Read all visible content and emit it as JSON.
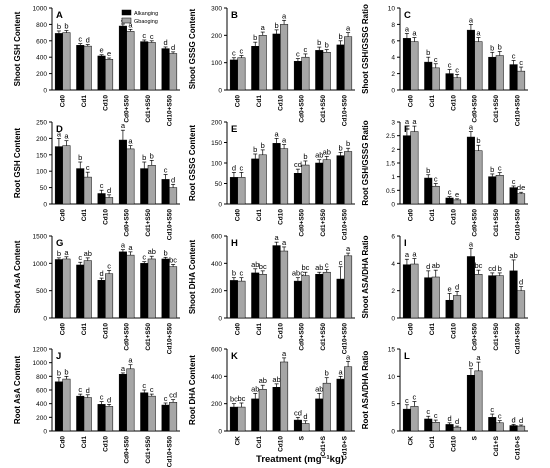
{
  "colors": {
    "alkanging": "#000000",
    "gbaoging": "#a6a6a6",
    "axis": "#000000"
  },
  "legend": {
    "entries": [
      "Alkanging",
      "Gbaoging"
    ]
  },
  "xlabel": "Treatment (mg⁻¹kg)",
  "chart_data": [
    {
      "id": "A",
      "type": "bar",
      "ylabel": "Shoot GSH Content",
      "ylim": [
        0,
        1000
      ],
      "yticks": [
        0,
        200,
        400,
        600,
        800,
        1000
      ],
      "categories": [
        "Cd0",
        "Cd1",
        "Cd10",
        "Cd0+S50",
        "Cd1+S50",
        "Cd10+S50"
      ],
      "series": [
        {
          "name": "Alkanging",
          "values": [
            690,
            545,
            415,
            780,
            590,
            505
          ],
          "errors": [
            30,
            20,
            15,
            25,
            20,
            20
          ],
          "letters": [
            "b",
            "c",
            "e",
            "a",
            "c",
            "d"
          ]
        },
        {
          "name": "Gbaoging",
          "values": [
            700,
            535,
            375,
            715,
            580,
            445
          ],
          "errors": [
            25,
            20,
            15,
            25,
            20,
            20
          ],
          "letters": [
            "b",
            "d",
            "e",
            "a",
            "c",
            "d"
          ]
        }
      ]
    },
    {
      "id": "B",
      "type": "bar",
      "ylabel": "Shoot GSSG Content",
      "ylim": [
        0,
        300
      ],
      "yticks": [
        0,
        100,
        200,
        300
      ],
      "categories": [
        "Cd0",
        "Cd1",
        "Cd10",
        "Cd0+S50",
        "Cd1+S50",
        "Cd10+S50"
      ],
      "series": [
        {
          "name": "Alkanging",
          "values": [
            110,
            160,
            205,
            105,
            145,
            165
          ],
          "errors": [
            8,
            15,
            15,
            10,
            12,
            15
          ],
          "letters": [
            "c",
            "b",
            "b",
            "c",
            "b",
            "b"
          ]
        },
        {
          "name": "Gbaoging",
          "values": [
            118,
            200,
            240,
            120,
            138,
            195
          ],
          "errors": [
            8,
            12,
            15,
            12,
            10,
            15
          ],
          "letters": [
            "c",
            "a",
            "a",
            "c",
            "b",
            "a"
          ]
        }
      ]
    },
    {
      "id": "C",
      "type": "bar",
      "ylabel": "Shoot GSH/GSSG Ratio",
      "ylim": [
        0,
        10
      ],
      "yticks": [
        0,
        2,
        4,
        6,
        8,
        10
      ],
      "categories": [
        "Cd0",
        "Cd1",
        "Cd10",
        "Cd0+S50",
        "Cd1+S50",
        "Cd10+S50"
      ],
      "series": [
        {
          "name": "Alkanging",
          "values": [
            6.3,
            3.4,
            2.0,
            7.3,
            4.0,
            3.1
          ],
          "errors": [
            0.6,
            0.6,
            0.5,
            0.7,
            0.6,
            0.5
          ],
          "letters": [
            "a",
            "b",
            "c",
            "a",
            "b",
            "c"
          ]
        },
        {
          "name": "Gbaoging",
          "values": [
            5.9,
            2.7,
            1.5,
            5.9,
            4.2,
            2.3
          ],
          "errors": [
            0.5,
            0.5,
            0.4,
            0.5,
            0.5,
            0.5
          ],
          "letters": [
            "a",
            "c",
            "c",
            "a",
            "b",
            "c"
          ]
        }
      ]
    },
    {
      "id": "D",
      "type": "bar",
      "ylabel": "Root GSH Content",
      "ylim": [
        0,
        250
      ],
      "yticks": [
        0,
        50,
        100,
        150,
        200,
        250
      ],
      "categories": [
        "Cd0",
        "Cd1",
        "Cd10",
        "Cd0+S50",
        "Cd1+S50",
        "Cd10+S50"
      ],
      "series": [
        {
          "name": "Alkanging",
          "values": [
            175,
            108,
            32,
            195,
            108,
            75
          ],
          "errors": [
            25,
            20,
            10,
            30,
            20,
            15
          ],
          "letters": [
            "a",
            "b",
            "c",
            "a",
            "b",
            "c"
          ]
        },
        {
          "name": "Gbaoging",
          "values": [
            178,
            82,
            20,
            168,
            118,
            50
          ],
          "errors": [
            15,
            15,
            8,
            10,
            15,
            10
          ],
          "letters": [
            "a",
            "c",
            "d",
            "a",
            "b",
            "d"
          ]
        }
      ]
    },
    {
      "id": "E",
      "type": "bar",
      "ylabel": "Root GSSG Content",
      "ylim": [
        0,
        200
      ],
      "yticks": [
        0,
        50,
        100,
        150,
        200
      ],
      "categories": [
        "Cd0",
        "Cd1",
        "Cd10",
        "Cd0+S50",
        "Cd1+S50",
        "Cd10+S50"
      ],
      "series": [
        {
          "name": "Alkanging",
          "values": [
            65,
            110,
            148,
            75,
            100,
            118
          ],
          "errors": [
            12,
            12,
            12,
            10,
            8,
            8
          ],
          "letters": [
            "d",
            "b",
            "a",
            "cd",
            "ab",
            "b"
          ]
        },
        {
          "name": "Gbaoging",
          "values": [
            65,
            120,
            135,
            95,
            108,
            128
          ],
          "errors": [
            12,
            12,
            10,
            10,
            8,
            8
          ],
          "letters": [
            "c",
            "b",
            "a",
            "b",
            "ab",
            "b"
          ]
        }
      ]
    },
    {
      "id": "F",
      "type": "bar",
      "ylabel": "Root GSH/GSSG Ratio",
      "ylim": [
        0,
        3
      ],
      "yticks": [
        0,
        0.5,
        1.0,
        1.5,
        2.0,
        2.5,
        3.0
      ],
      "categories": [
        "Cd0",
        "Cd1",
        "Cd10",
        "Cd0+S50",
        "Cd1+S50",
        "Cd10+S50"
      ],
      "series": [
        {
          "name": "Alkanging",
          "values": [
            2.5,
            0.95,
            0.22,
            2.45,
            1.0,
            0.6
          ],
          "errors": [
            0.35,
            0.12,
            0.05,
            0.2,
            0.1,
            0.06
          ],
          "letters": [
            "a",
            "b",
            "c",
            "a",
            "b",
            "c"
          ]
        },
        {
          "name": "Gbaoging",
          "values": [
            2.65,
            0.65,
            0.15,
            1.95,
            1.05,
            0.38
          ],
          "errors": [
            0.2,
            0.1,
            0.04,
            0.2,
            0.1,
            0.05
          ],
          "letters": [
            "a",
            "c",
            "e",
            "b",
            "c",
            "de"
          ]
        }
      ]
    },
    {
      "id": "G",
      "type": "bar",
      "ylabel": "Shoot AsA Content",
      "ylim": [
        0,
        1500
      ],
      "yticks": [
        0,
        500,
        1000,
        1500
      ],
      "categories": [
        "Cd0",
        "Cd1",
        "Cd10",
        "Cd0+S50",
        "Cd1+S50",
        "Cd10+S50"
      ],
      "series": [
        {
          "name": "Alkanging",
          "values": [
            1070,
            970,
            690,
            1210,
            1000,
            1080
          ],
          "errors": [
            30,
            50,
            40,
            40,
            30,
            30
          ],
          "letters": [
            "b",
            "c",
            "d",
            "a",
            "c",
            "b"
          ]
        },
        {
          "name": "Gbaoging",
          "values": [
            1080,
            1050,
            810,
            1150,
            1080,
            940
          ],
          "errors": [
            40,
            50,
            60,
            60,
            50,
            40
          ],
          "letters": [
            "a",
            "ab",
            "c",
            "a",
            "ab",
            "bc"
          ]
        }
      ]
    },
    {
      "id": "H",
      "type": "bar",
      "ylabel": "Shoot DHA Content",
      "ylim": [
        0,
        600
      ],
      "yticks": [
        0,
        200,
        400,
        600
      ],
      "categories": [
        "Cd0",
        "Cd1",
        "Cd10",
        "Cd0+S50",
        "Cd1+S50",
        "Cd10+S50"
      ],
      "series": [
        {
          "name": "Alkanging",
          "values": [
            275,
            330,
            530,
            270,
            320,
            285
          ],
          "errors": [
            20,
            30,
            25,
            25,
            15,
            90
          ],
          "letters": [
            "b",
            "ab",
            "a",
            "abc",
            "ab",
            "c"
          ]
        },
        {
          "name": "Gbaoging",
          "values": [
            270,
            320,
            490,
            310,
            335,
            455
          ],
          "errors": [
            25,
            25,
            30,
            25,
            20,
            20
          ],
          "letters": [
            "c",
            "bc",
            "a",
            "bc",
            "c",
            "a"
          ]
        }
      ]
    },
    {
      "id": "I",
      "type": "bar",
      "ylabel": "Shoot ASA/DHA Ratio",
      "ylim": [
        0,
        6
      ],
      "yticks": [
        0,
        2,
        4,
        6
      ],
      "categories": [
        "Cd0",
        "Cd1",
        "Cd10",
        "Cd0+S50",
        "Cd1+S50",
        "Cd10+S50"
      ],
      "series": [
        {
          "name": "Alkanging",
          "values": [
            3.9,
            2.95,
            1.3,
            4.5,
            3.1,
            3.45
          ],
          "errors": [
            0.4,
            0.5,
            0.5,
            0.6,
            0.2,
            0.8
          ],
          "letters": [
            "a",
            "d",
            "e",
            "a",
            "cd",
            "ab"
          ]
        },
        {
          "name": "Gbaoging",
          "values": [
            3.95,
            3.0,
            1.65,
            3.2,
            3.1,
            2.0
          ],
          "errors": [
            0.4,
            0.5,
            0.3,
            0.3,
            0.2,
            0.3
          ],
          "letters": [
            "a",
            "ab",
            "d",
            "bc",
            "b",
            "d"
          ]
        }
      ]
    },
    {
      "id": "J",
      "type": "bar",
      "ylabel": "Root AsA Content",
      "ylim": [
        0,
        1200
      ],
      "yticks": [
        0,
        200,
        400,
        600,
        800,
        1000,
        1200
      ],
      "categories": [
        "Cd0",
        "Cd1",
        "Cd10",
        "Cd0+S50",
        "Cd1+S50",
        "Cd10+S50"
      ],
      "series": [
        {
          "name": "Alkanging",
          "values": [
            720,
            510,
            390,
            830,
            560,
            380
          ],
          "errors": [
            60,
            30,
            40,
            20,
            40,
            30
          ],
          "letters": [
            "b",
            "c",
            "c",
            "a",
            "c",
            "c"
          ]
        },
        {
          "name": "Gbaoging",
          "values": [
            760,
            490,
            360,
            910,
            510,
            420
          ],
          "errors": [
            40,
            40,
            30,
            60,
            30,
            40
          ],
          "letters": [
            "b",
            "d",
            "d",
            "a",
            "c",
            "cd"
          ]
        }
      ]
    },
    {
      "id": "K",
      "type": "bar",
      "ylabel": "Root DHA Content",
      "ylim": [
        0,
        600
      ],
      "yticks": [
        0,
        200,
        400,
        600
      ],
      "categories": [
        "CK",
        "Cd1",
        "Cd10",
        "S",
        "Cd1+S",
        "Cd10+S"
      ],
      "series": [
        {
          "name": "Alkanging",
          "values": [
            175,
            235,
            320,
            80,
            235,
            380
          ],
          "errors": [
            25,
            40,
            25,
            20,
            40,
            20
          ],
          "letters": [
            "bc",
            "ab",
            "ab",
            "cd",
            "ab",
            "a"
          ]
        },
        {
          "name": "Gbaoging",
          "values": [
            175,
            305,
            505,
            55,
            350,
            470
          ],
          "errors": [
            30,
            30,
            30,
            20,
            40,
            40
          ],
          "letters": [
            "bc",
            "ab",
            "a",
            "d",
            "b",
            "a"
          ]
        }
      ]
    },
    {
      "id": "L",
      "type": "bar",
      "ylabel": "Root ASA/DHA Ratio",
      "ylim": [
        0,
        15
      ],
      "yticks": [
        0,
        5,
        10,
        15
      ],
      "categories": [
        "CK",
        "Cd1",
        "Cd10",
        "S",
        "Cd1+S",
        "Cd10+S"
      ],
      "series": [
        {
          "name": "Alkanging",
          "values": [
            4.0,
            2.2,
            1.2,
            10.2,
            2.5,
            1.0
          ],
          "errors": [
            0.8,
            0.5,
            0.3,
            1.2,
            0.6,
            0.2
          ],
          "letters": [
            "c",
            "c",
            "d",
            "b",
            "c",
            "d"
          ]
        },
        {
          "name": "Gbaoging",
          "values": [
            4.5,
            1.6,
            0.7,
            11.0,
            1.5,
            0.9
          ],
          "errors": [
            0.9,
            0.4,
            0.2,
            1.6,
            0.4,
            0.2
          ],
          "letters": [
            "c",
            "c",
            "d",
            "a",
            "c",
            "d"
          ]
        }
      ]
    }
  ]
}
